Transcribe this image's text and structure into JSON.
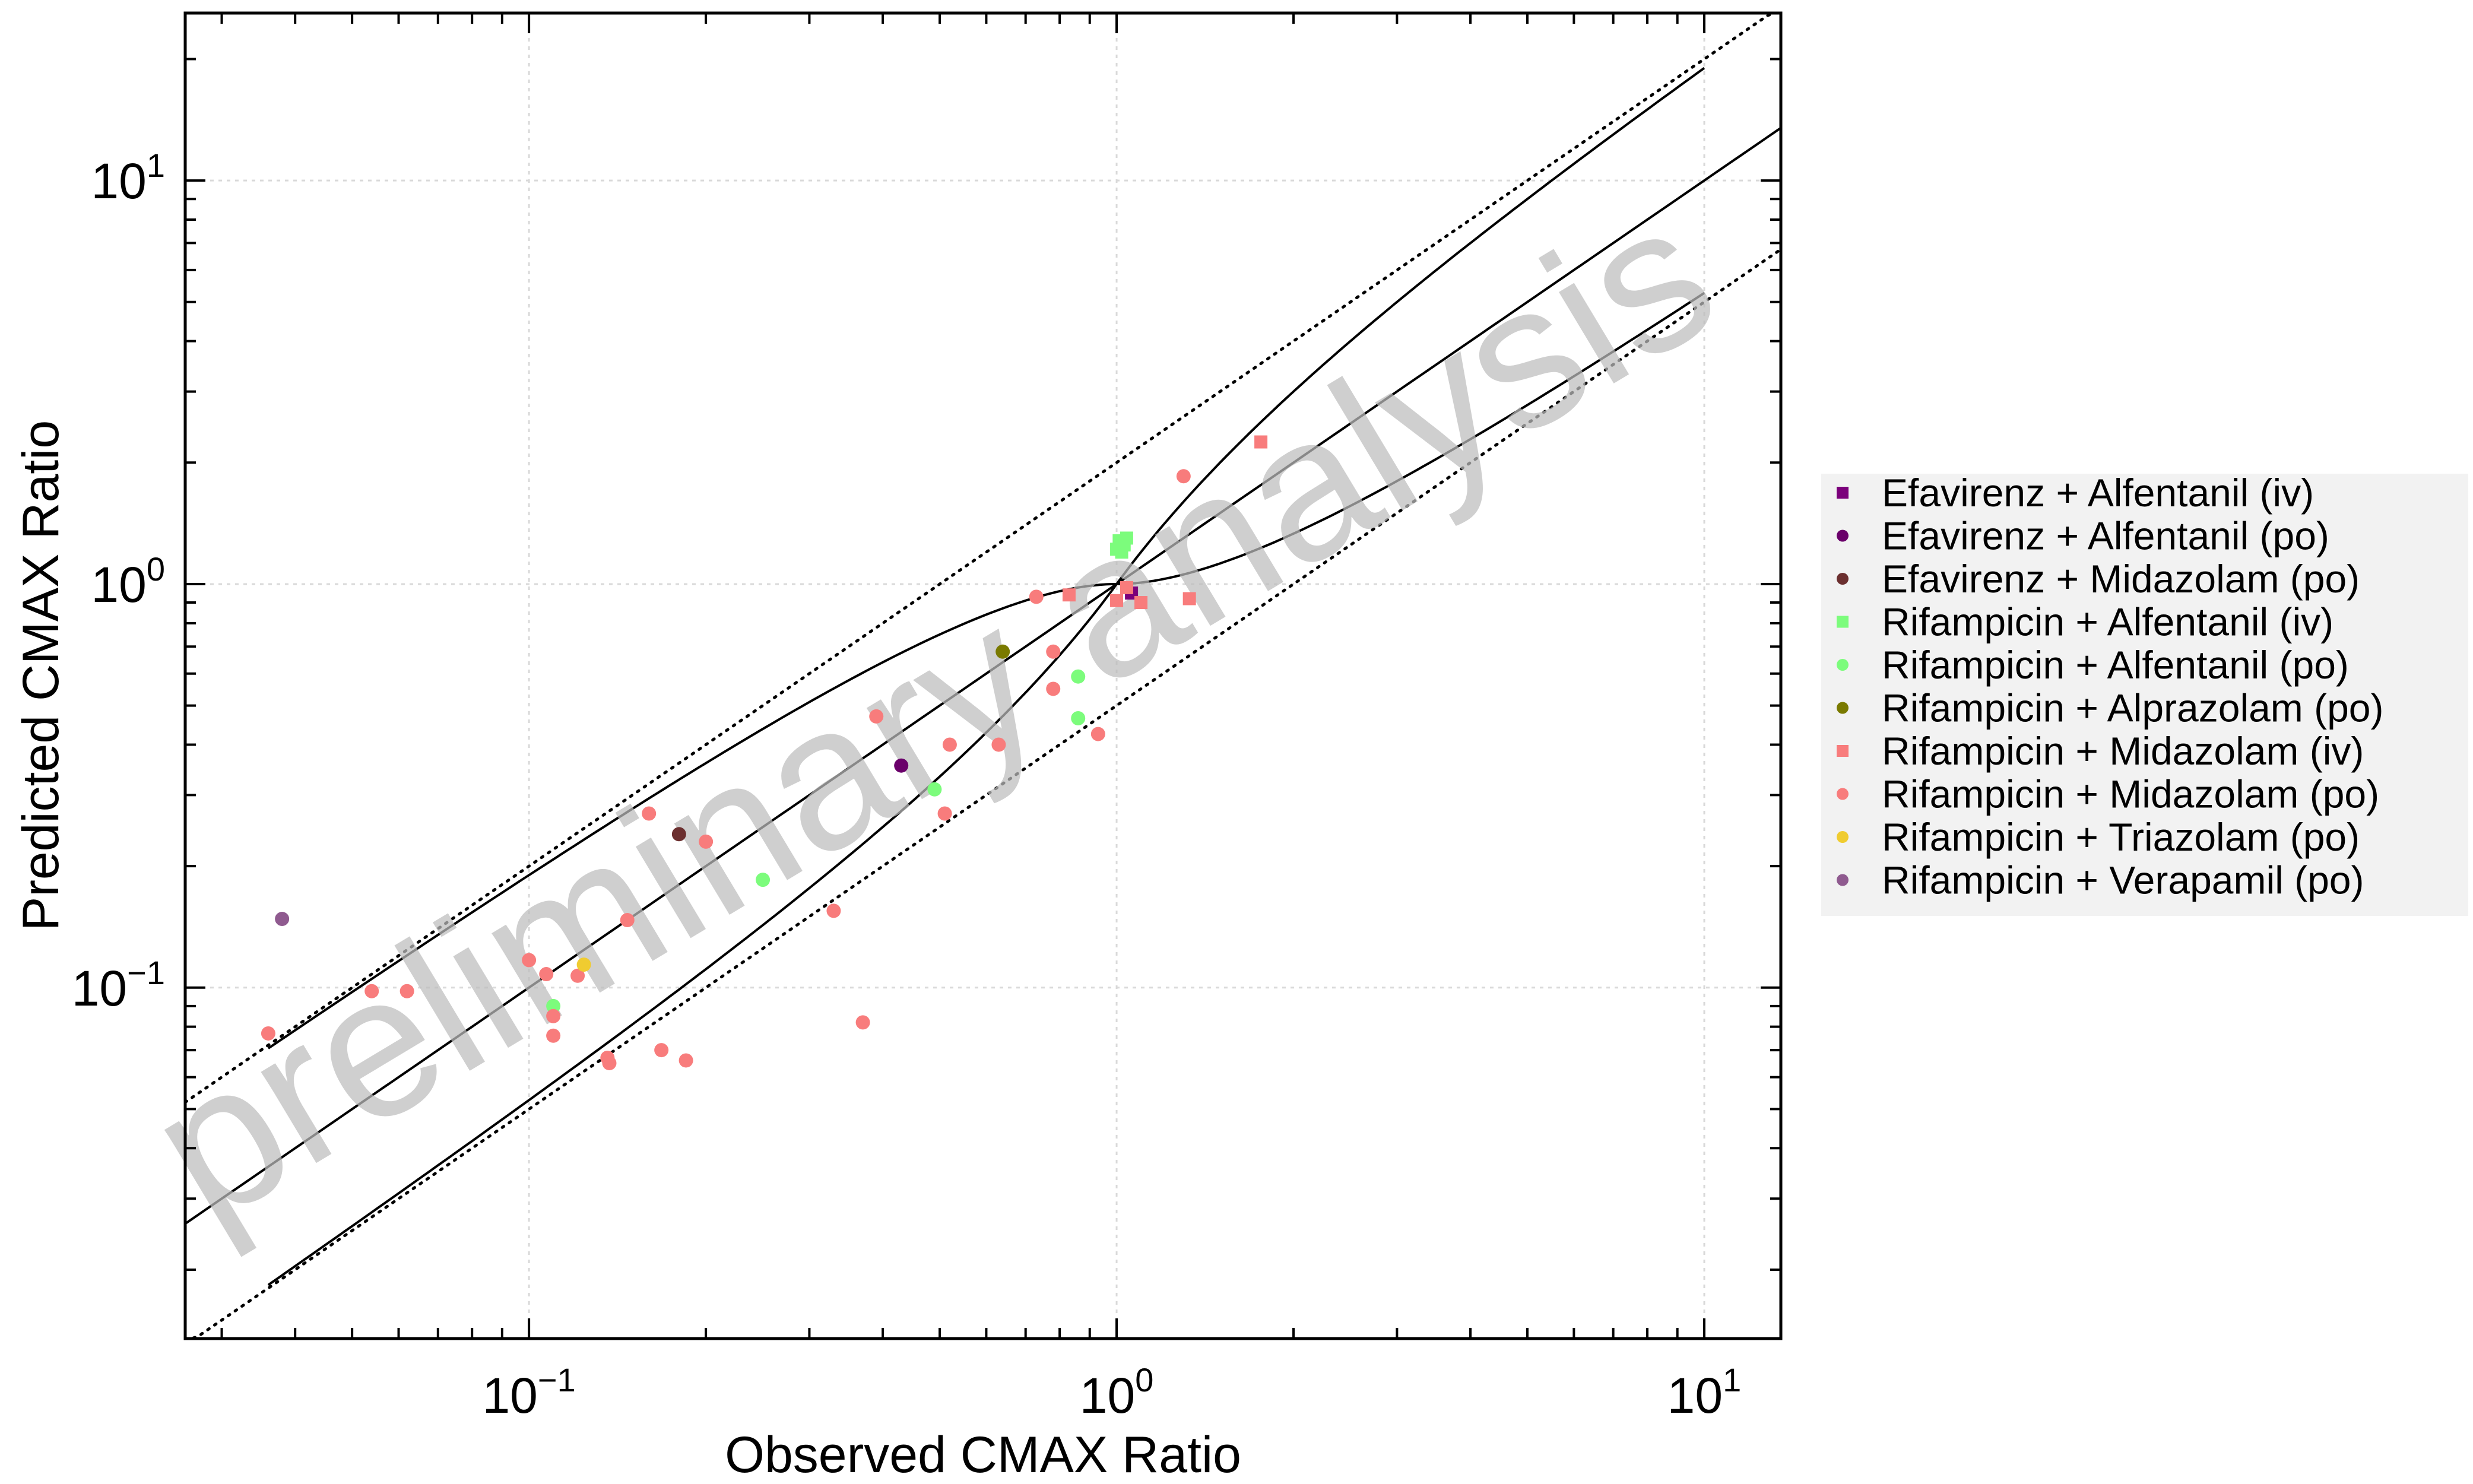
{
  "chart_data": {
    "type": "scatter",
    "xlabel": "Observed CMAX Ratio",
    "ylabel": "Predicted CMAX Ratio",
    "xscale": "log",
    "yscale": "log",
    "xlim": [
      0.026,
      13.5
    ],
    "ylim": [
      0.0135,
      26
    ],
    "x_ticks": [
      {
        "value": 0.1,
        "base": "10",
        "exp": "−1"
      },
      {
        "value": 1,
        "base": "10",
        "exp": "0"
      },
      {
        "value": 10,
        "base": "10",
        "exp": "1"
      }
    ],
    "y_ticks": [
      {
        "value": 0.1,
        "base": "10",
        "exp": "−1"
      },
      {
        "value": 1,
        "base": "10",
        "exp": "0"
      },
      {
        "value": 10,
        "base": "10",
        "exp": "1"
      }
    ],
    "grid": true,
    "legend_position": "right",
    "watermark": "preliminary analysis",
    "reference_lines": [
      {
        "name": "identity",
        "style": "solid"
      },
      {
        "name": "2-fold upper",
        "style": "dotted",
        "factor": 2
      },
      {
        "name": "2-fold lower",
        "style": "dotted",
        "factor": 0.5
      },
      {
        "name": "Guest limit upper",
        "style": "solid"
      },
      {
        "name": "Guest limit lower",
        "style": "solid"
      }
    ],
    "series": [
      {
        "name": "Efavirenz + Alfentanil (iv)",
        "color": "#7b007b",
        "marker": "square",
        "points": [
          [
            1.06,
            0.95
          ]
        ]
      },
      {
        "name": "Efavirenz + Alfentanil (po)",
        "color": "#6a006a",
        "marker": "circle",
        "points": [
          [
            0.43,
            0.355
          ]
        ]
      },
      {
        "name": "Efavirenz + Midazolam (po)",
        "color": "#6b2f2f",
        "marker": "circle",
        "points": [
          [
            0.18,
            0.24
          ]
        ]
      },
      {
        "name": "Rifampicin + Alfentanil (iv)",
        "color": "#7cfc7c",
        "marker": "square",
        "points": [
          [
            1.0,
            1.22
          ],
          [
            1.01,
            1.28
          ],
          [
            1.03,
            1.25
          ],
          [
            1.04,
            1.3
          ],
          [
            1.02,
            1.2
          ]
        ]
      },
      {
        "name": "Rifampicin + Alfentanil (po)",
        "color": "#7cfc7c",
        "marker": "circle",
        "points": [
          [
            0.86,
            0.59
          ],
          [
            0.86,
            0.465
          ],
          [
            0.49,
            0.31
          ],
          [
            0.25,
            0.185
          ],
          [
            0.11,
            0.09
          ]
        ]
      },
      {
        "name": "Rifampicin + Alprazolam (po)",
        "color": "#7a7a00",
        "marker": "circle",
        "points": [
          [
            0.64,
            0.68
          ]
        ]
      },
      {
        "name": "Rifampicin + Midazolam (iv)",
        "color": "#f87c7c",
        "marker": "square",
        "points": [
          [
            1.76,
            2.25
          ],
          [
            1.33,
            0.92
          ],
          [
            1.1,
            0.9
          ],
          [
            1.04,
            0.98
          ],
          [
            1.0,
            0.91
          ],
          [
            0.83,
            0.94
          ]
        ]
      },
      {
        "name": "Rifampicin + Midazolam (po)",
        "color": "#f87c7c",
        "marker": "circle",
        "points": [
          [
            1.3,
            1.85
          ],
          [
            0.73,
            0.93
          ],
          [
            0.78,
            0.68
          ],
          [
            0.78,
            0.55
          ],
          [
            0.93,
            0.425
          ],
          [
            0.63,
            0.4
          ],
          [
            0.52,
            0.4
          ],
          [
            0.51,
            0.27
          ],
          [
            0.39,
            0.47
          ],
          [
            0.2,
            0.23
          ],
          [
            0.16,
            0.27
          ],
          [
            0.33,
            0.155
          ],
          [
            0.37,
            0.082
          ],
          [
            0.1,
            0.117
          ],
          [
            0.107,
            0.108
          ],
          [
            0.121,
            0.107
          ],
          [
            0.11,
            0.085
          ],
          [
            0.11,
            0.076
          ],
          [
            0.147,
            0.147
          ],
          [
            0.136,
            0.067
          ],
          [
            0.137,
            0.065
          ],
          [
            0.168,
            0.07
          ],
          [
            0.185,
            0.066
          ],
          [
            0.062,
            0.098
          ],
          [
            0.054,
            0.098
          ],
          [
            0.036,
            0.077
          ]
        ]
      },
      {
        "name": "Rifampicin + Triazolam (po)",
        "color": "#f0cc30",
        "marker": "circle",
        "points": [
          [
            0.124,
            0.114
          ]
        ]
      },
      {
        "name": "Rifampicin + Verapamil (po)",
        "color": "#8f5a8f",
        "marker": "circle",
        "points": [
          [
            0.038,
            0.148
          ]
        ]
      }
    ]
  }
}
